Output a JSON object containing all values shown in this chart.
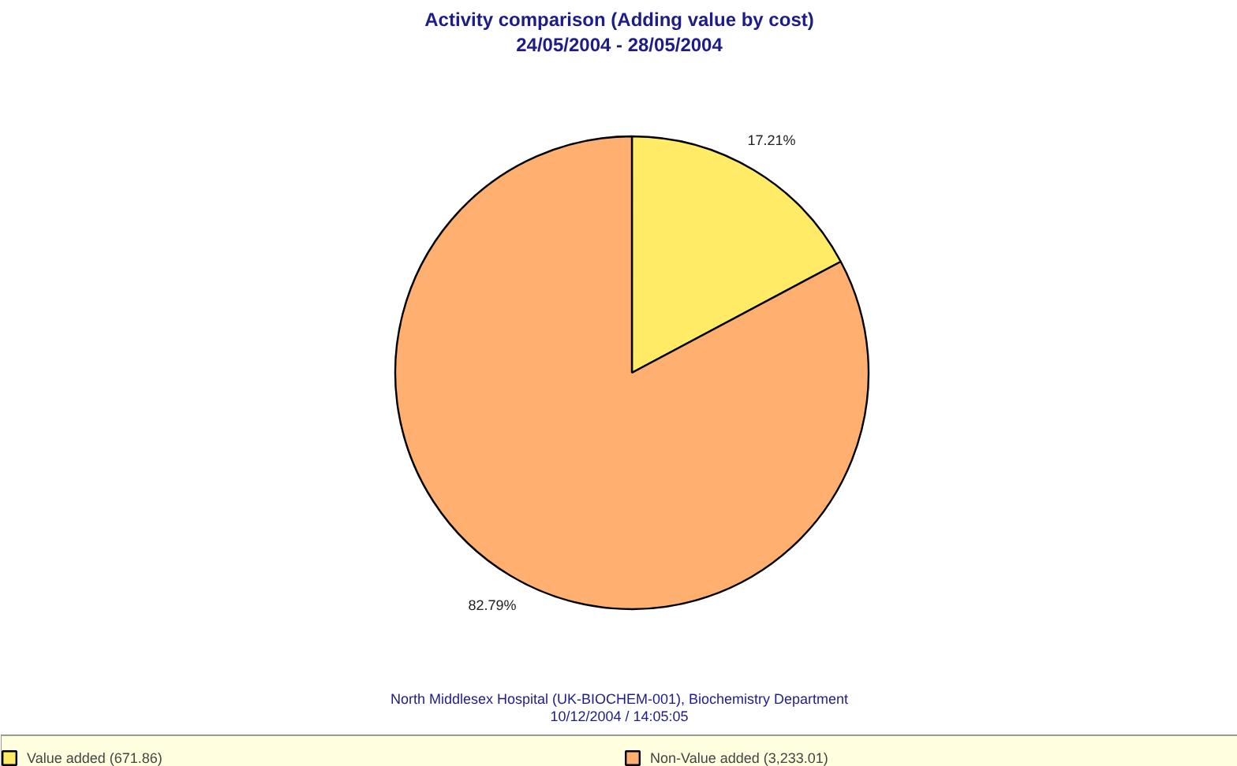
{
  "chart_data": {
    "type": "pie",
    "title": "Activity comparison (Adding value by cost)",
    "subtitle": "24/05/2004 - 28/05/2004",
    "categories": [
      "Value added (671.86)",
      "Non-Value added (3,233.01)"
    ],
    "values": [
      17.21,
      82.79
    ],
    "colors": [
      "#ffeb66",
      "#ffb070"
    ],
    "value_labels": [
      "17.21%",
      "82.79%"
    ],
    "legend": "bottom",
    "annotations": [
      "North Middlesex Hospital (UK-BIOCHEM-001), Biochemistry Department",
      "10/12/2004 / 14:05:05"
    ]
  }
}
